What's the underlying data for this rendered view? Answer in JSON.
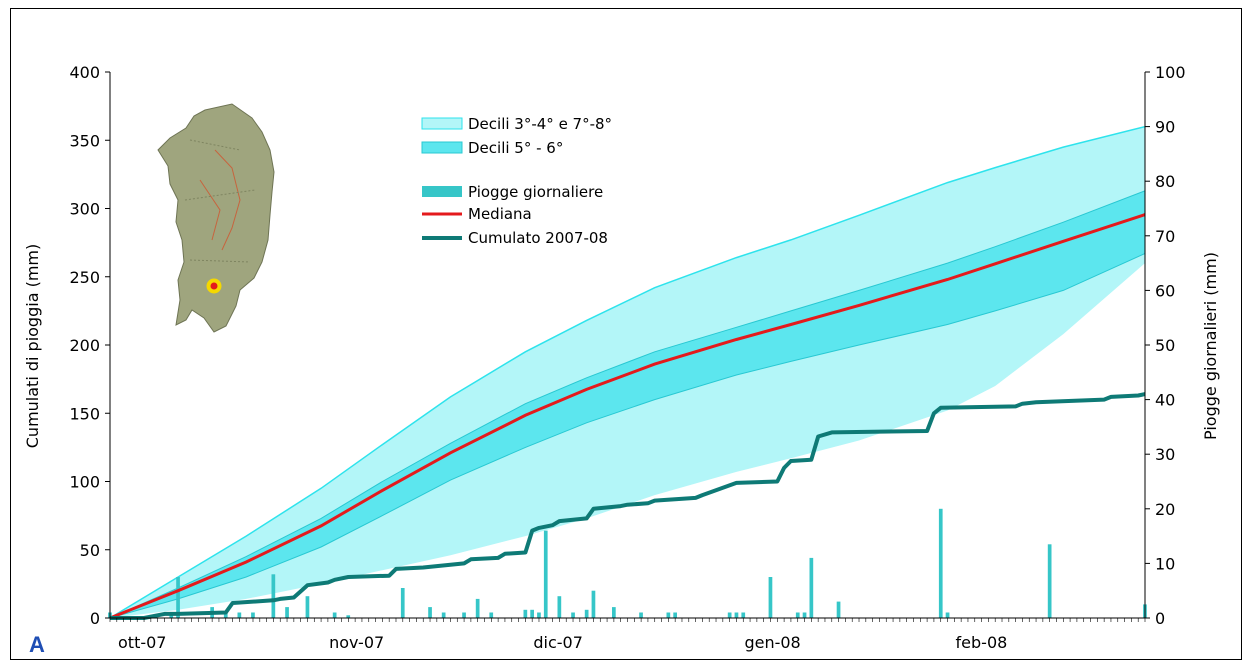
{
  "panel_label": "A",
  "colors": {
    "outer_band": "#b3f6f8",
    "outer_band_edge": "#2ee3ec",
    "inner_band": "#5ce6ee",
    "inner_band_edge": "#28c8d2",
    "median": "#e41a1c",
    "cumulative": "#0e7a76",
    "bars": "#36c6c8"
  },
  "chart_data": {
    "type": "area",
    "xlabel": "",
    "ylabel": "Cumulati di pioggia (mm)",
    "y2label": "Piogge giornalieri (mm)",
    "x_ticks": [
      "ott-07",
      "nov-07",
      "dic-07",
      "gen-08",
      "feb-08"
    ],
    "x_tick_days": [
      0,
      31,
      61,
      92,
      123
    ],
    "xlim_days": [
      0,
      152
    ],
    "ylim": [
      0,
      400
    ],
    "y_ticks": [
      0,
      50,
      100,
      150,
      200,
      250,
      300,
      350,
      400
    ],
    "y2lim": [
      0,
      100
    ],
    "y2_ticks": [
      0,
      10,
      20,
      30,
      40,
      50,
      60,
      70,
      80,
      90,
      100
    ],
    "legend": {
      "outer": "Decili 3°-4° e 7°-8°",
      "inner": "Decili 5° - 6°",
      "bars": "Piogge giornaliere",
      "median": "Mediana",
      "cumulative": "Cumulato 2007-08"
    },
    "bands": {
      "days": [
        0,
        10,
        20,
        31,
        40,
        50,
        61,
        70,
        80,
        92,
        100,
        110,
        123,
        130,
        140,
        152
      ],
      "decile_8": [
        0,
        30,
        60,
        95,
        127,
        162,
        195,
        218,
        242,
        264,
        277,
        295,
        319,
        330,
        345,
        360
      ],
      "decile_6": [
        0,
        22,
        45,
        73,
        100,
        128,
        157,
        176,
        195,
        213,
        225,
        240,
        260,
        272,
        290,
        313
      ],
      "decile_5": [
        0,
        18,
        37,
        62,
        87,
        114,
        140,
        159,
        177,
        195,
        205,
        218,
        236,
        247,
        262,
        278
      ],
      "decile_4": [
        0,
        14,
        30,
        52,
        75,
        101,
        125,
        143,
        160,
        178,
        188,
        200,
        215,
        225,
        240,
        267
      ],
      "decile_3": [
        0,
        6,
        14,
        25,
        35,
        46,
        60,
        73,
        90,
        107,
        117,
        130,
        152,
        170,
        208,
        260
      ]
    },
    "cumulative_2007_08": {
      "days": [
        0,
        5,
        8,
        10,
        17,
        18,
        24,
        25,
        27,
        29,
        32,
        33,
        35,
        41,
        42,
        46,
        48,
        52,
        53,
        57,
        58,
        61,
        62,
        63,
        65,
        66,
        70,
        71,
        75,
        76,
        79,
        80,
        86,
        87,
        92,
        98,
        99,
        100,
        103,
        104,
        106,
        120,
        121,
        122,
        133,
        134,
        136,
        146,
        147,
        151,
        152
      ],
      "values": [
        0,
        0,
        3,
        3,
        4,
        11,
        13,
        14,
        15,
        24,
        26,
        28,
        30,
        31,
        36,
        37,
        38,
        40,
        43,
        44,
        47,
        48,
        64,
        66,
        68,
        71,
        73,
        80,
        82,
        83,
        84,
        86,
        88,
        90,
        99,
        100,
        110,
        115,
        116,
        133,
        136,
        137,
        150,
        154,
        155,
        157,
        158,
        160,
        162,
        163,
        164
      ]
    },
    "daily_rain": {
      "days": [
        0,
        9,
        10,
        15,
        17,
        19,
        21,
        24,
        26,
        29,
        33,
        35,
        43,
        47,
        49,
        52,
        54,
        56,
        61,
        62,
        63,
        64,
        66,
        68,
        70,
        71,
        74,
        78,
        82,
        83,
        91,
        92,
        93,
        97,
        101,
        102,
        103,
        107,
        122,
        123,
        138,
        152
      ],
      "values": [
        1,
        1,
        7.5,
        2,
        1,
        1,
        1,
        8,
        2,
        4,
        1,
        0.5,
        5.5,
        2,
        1,
        1,
        3.5,
        1,
        1.5,
        1.5,
        1,
        16,
        4,
        1,
        1.5,
        5,
        2,
        1,
        1,
        1,
        1,
        1,
        1,
        7.5,
        1,
        1,
        11,
        3,
        20,
        1,
        13.5,
        2.5
      ],
      "values_secondary": []
    }
  }
}
